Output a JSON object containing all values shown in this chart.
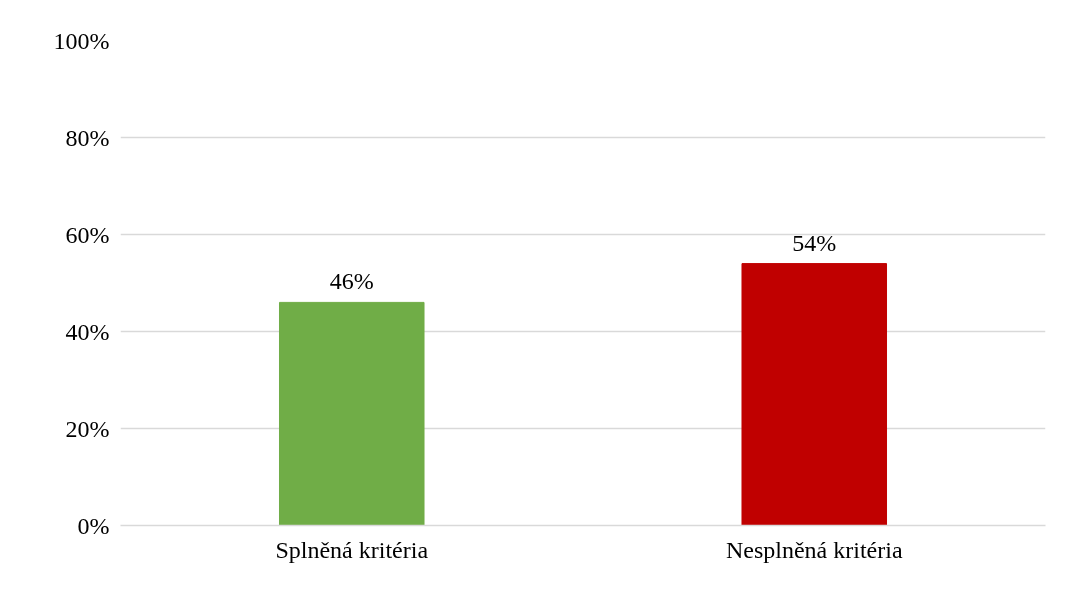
{
  "chart_data": {
    "type": "bar",
    "categories": [
      "Splněná kritéria",
      "Nesplněná kritéria"
    ],
    "values": [
      46,
      54
    ],
    "colors": [
      "#70ad47",
      "#c00000"
    ],
    "value_labels": [
      "46%",
      "54%"
    ],
    "ylim": [
      0,
      100
    ],
    "yticks": [
      {
        "value": 0,
        "label": "0%"
      },
      {
        "value": 20,
        "label": "20%"
      },
      {
        "value": 40,
        "label": "40%"
      },
      {
        "value": 60,
        "label": "60%"
      },
      {
        "value": 80,
        "label": "80%"
      },
      {
        "value": 100,
        "label": "100%"
      }
    ],
    "grid": "y"
  }
}
